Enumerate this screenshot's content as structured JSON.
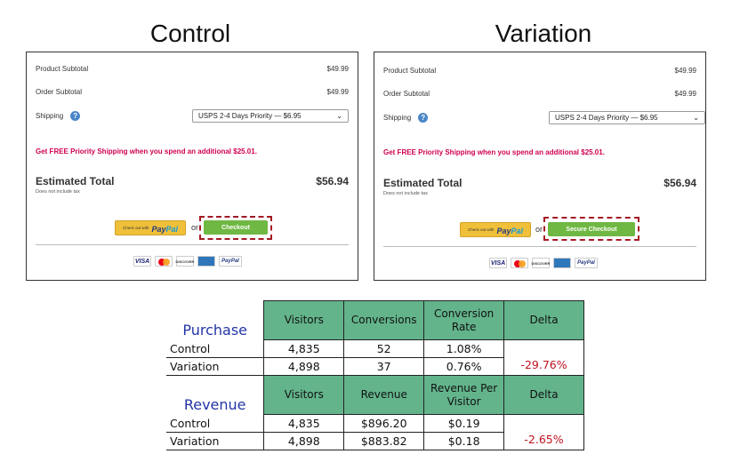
{
  "headings": {
    "control": "Control",
    "variation": "Variation"
  },
  "panels": [
    {
      "product_subtotal_label": "Product Subtotal",
      "product_subtotal_value": "$49.99",
      "order_subtotal_label": "Order Subtotal",
      "order_subtotal_value": "$49.99",
      "shipping_label": "Shipping",
      "shipping_option": "USPS 2-4 Days  Priority —  $6.95",
      "promo": "Get FREE Priority Shipping when you spend an additional $25.01.",
      "estimated_total_label": "Estimated Total",
      "estimated_total_note": "Does not include tax",
      "estimated_total_value": "$56.94",
      "paypal_small": "Check out with",
      "paypal_brand_1": "Pay",
      "paypal_brand_2": "Pal",
      "or": "or",
      "checkout_label": "Checkout"
    },
    {
      "product_subtotal_label": "Product Subtotal",
      "product_subtotal_value": "$49.99",
      "order_subtotal_label": "Order Subtotal",
      "order_subtotal_value": "$49.99",
      "shipping_label": "Shipping",
      "shipping_option": "USPS 2-4 Days  Priority —  $6.95",
      "promo": "Get FREE Priority Shipping when you spend an additional $25.01.",
      "estimated_total_label": "Estimated Total",
      "estimated_total_note": "Does not include tax",
      "estimated_total_value": "$56.94",
      "paypal_small": "Check out with",
      "paypal_brand_1": "Pay",
      "paypal_brand_2": "Pal",
      "or": "or",
      "checkout_label": "Secure Checkout"
    }
  ],
  "payment_logos": {
    "visa": "VISA",
    "discover": "DISCOVER",
    "paypal": "PayPal"
  },
  "table": {
    "purchase": {
      "section": "Purchase",
      "headers": [
        "Visitors",
        "Conversions",
        "Conversion Rate",
        "Delta"
      ],
      "rows": [
        {
          "label": "Control",
          "cells": [
            "4,835",
            "52",
            "1.08%"
          ]
        },
        {
          "label": "Variation",
          "cells": [
            "4,898",
            "37",
            "0.76%"
          ]
        }
      ],
      "delta": "-29.76%"
    },
    "revenue": {
      "section": "Revenue",
      "headers": [
        "Visitors",
        "Revenue",
        "Revenue Per Visitor",
        "Delta"
      ],
      "rows": [
        {
          "label": "Control",
          "cells": [
            "4,835",
            "$896.20",
            "$0.19"
          ]
        },
        {
          "label": "Variation",
          "cells": [
            "4,898",
            "$883.82",
            "$0.18"
          ]
        }
      ],
      "delta": "-2.65%"
    }
  },
  "colors": {
    "header_green": "#63b48b",
    "delta_red": "#c0121e",
    "section_blue": "#2335a6",
    "promo_pink": "#d0004f",
    "checkout_green": "#6fb843"
  }
}
